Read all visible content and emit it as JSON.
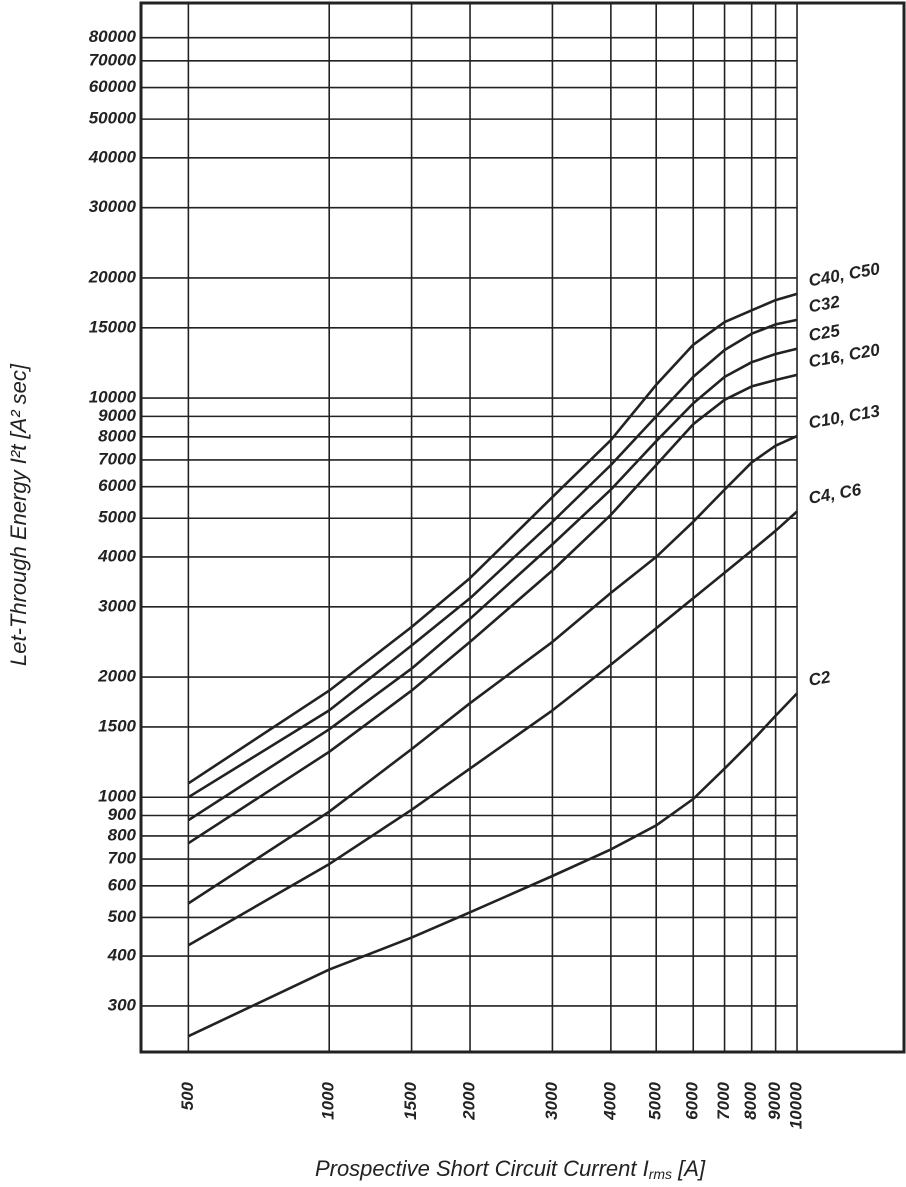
{
  "chart_data": {
    "type": "line",
    "xlabel": [
      "Prospective Short Circuit Current I",
      "rms",
      " [A]"
    ],
    "ylabel": "Let-Through Energy I²t [A² sec]",
    "x": [
      500,
      1000,
      1500,
      2000,
      3000,
      4000,
      5000,
      6000,
      7000,
      8000,
      9000,
      10000
    ],
    "series": [
      {
        "name": "C40, C50",
        "color": "#222222",
        "values": [
          1084,
          1850,
          2670,
          3540,
          5650,
          7850,
          10800,
          13600,
          15500,
          16600,
          17600,
          18240
        ]
      },
      {
        "name": "C32",
        "color": "#222222",
        "values": [
          1000,
          1650,
          2400,
          3150,
          4900,
          6800,
          9000,
          11300,
          13200,
          14500,
          15300,
          15700
        ]
      },
      {
        "name": "C25",
        "color": "#222222",
        "values": [
          876,
          1480,
          2100,
          2800,
          4300,
          5900,
          7800,
          9700,
          11300,
          12300,
          12900,
          13300
        ]
      },
      {
        "name": "C16, C20",
        "color": "#222222",
        "values": [
          767,
          1300,
          1850,
          2450,
          3700,
          5100,
          6800,
          8600,
          9900,
          10700,
          11100,
          11430
        ]
      },
      {
        "name": "C10, C13",
        "color": "#222222",
        "values": [
          542,
          920,
          1320,
          1720,
          2450,
          3250,
          4000,
          4900,
          5900,
          6900,
          7600,
          8030
        ]
      },
      {
        "name": "C4, C6",
        "color": "#222222",
        "values": [
          426,
          680,
          930,
          1180,
          1650,
          2150,
          2650,
          3150,
          3650,
          4150,
          4650,
          5200
        ]
      },
      {
        "name": "C2",
        "color": "#222222",
        "values": [
          252,
          370,
          445,
          515,
          635,
          740,
          850,
          990,
          1180,
          1380,
          1600,
          1820
        ]
      }
    ],
    "xlog": true,
    "ylog": true,
    "grid": true,
    "xlim": [
      396,
      16930
    ],
    "ylim": [
      230,
      97700
    ],
    "xticks": [
      500,
      1000,
      1500,
      2000,
      3000,
      4000,
      5000,
      6000,
      7000,
      8000,
      9000,
      10000
    ],
    "yticks": [
      300,
      400,
      500,
      600,
      700,
      800,
      900,
      1000,
      1500,
      2000,
      3000,
      4000,
      5000,
      6000,
      7000,
      8000,
      9000,
      10000,
      15000,
      20000,
      30000,
      40000,
      50000,
      60000,
      70000,
      80000
    ]
  }
}
